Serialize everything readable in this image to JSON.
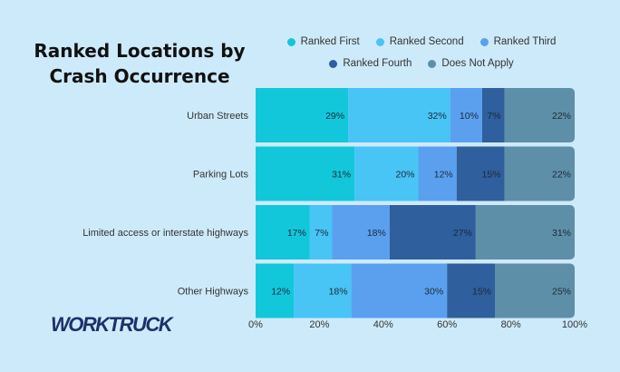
{
  "title": "Ranked Locations by Crash Occurrence",
  "logo": "WORKTRUCK",
  "chart_data": {
    "type": "bar",
    "orientation": "horizontal",
    "stacked": true,
    "categories": [
      "Urban Streets",
      "Parking Lots",
      "Limited access or interstate highways",
      "Other Highways"
    ],
    "series": [
      {
        "name": "Ranked First",
        "color": "#12c7da",
        "values": [
          29,
          31,
          17,
          12
        ]
      },
      {
        "name": "Ranked Second",
        "color": "#48c4f5",
        "values": [
          32,
          20,
          7,
          18
        ]
      },
      {
        "name": "Ranked Third",
        "color": "#5aa0ee",
        "values": [
          10,
          12,
          18,
          30
        ]
      },
      {
        "name": "Ranked Fourth",
        "color": "#2f5f9c",
        "values": [
          7,
          15,
          27,
          15
        ]
      },
      {
        "name": "Does Not Apply",
        "color": "#5e8fa8",
        "values": [
          22,
          22,
          31,
          25
        ]
      }
    ],
    "xticks": [
      "0%",
      "20%",
      "40%",
      "60%",
      "80%",
      "100%"
    ],
    "xlim": [
      0,
      100
    ],
    "value_suffix": "%",
    "legend_position": "top-right"
  }
}
